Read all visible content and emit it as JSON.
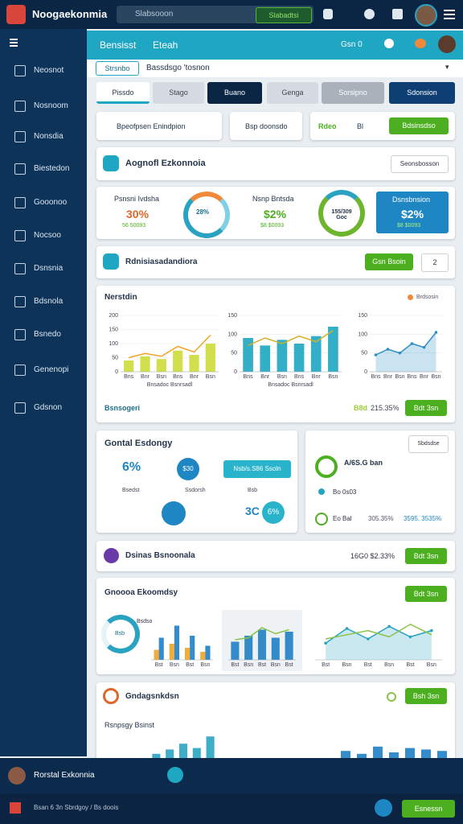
{
  "app": {
    "title": "Noogaekonmia",
    "search": "Slabsooon",
    "search_button": "Slabadtsi"
  },
  "sidebar": [
    "Neosnot",
    "Nosnoom",
    "Nonsdia",
    "Biestedon",
    "Gooonoo",
    "Nocsoo",
    "Dsnsnia",
    "Bdsnola",
    "Bsnedo",
    "Genenopi",
    "Gdsnon"
  ],
  "header": {
    "title": "Bensisst",
    "subtitle": "Eteah",
    "status": "Gsn 0"
  },
  "filter": {
    "chip": "Strsnbo",
    "value": "Bassdsgo 'tosnon"
  },
  "tabs": [
    "Pissdo",
    "Stago",
    "Buano",
    "Genga",
    "Sorsipno",
    "Sdonsion"
  ],
  "toolbar": {
    "search": "Bpeofpsen Enindpion",
    "filter": "Bsp doonsdo",
    "tag": "Rdeo",
    "count": "Bl",
    "button": "Bdsinsdso"
  },
  "overview": {
    "title": "Aognofl Ezkonnoia",
    "select": "Seonsbosson",
    "kpis": [
      {
        "label": "Psnsni Ivdsha",
        "value": "30%",
        "sub": "56 50093",
        "ring": "28%"
      },
      {
        "label": "Nsnp Bntsda",
        "value": "$2%",
        "sub": "$8 $0093",
        "ring": "155/309 Goc"
      },
      {
        "label": "Dsnsbnsion",
        "value": "$2%",
        "sub": "$8 $0093"
      }
    ]
  },
  "actions": {
    "title": "Rdnisiasadandiora",
    "button": "Gsn Bsoin",
    "page": "2"
  },
  "trends": {
    "title": "Nerstdin",
    "legend": "Brdsosin",
    "charts": [
      {
        "ylim": [
          0,
          200
        ],
        "yticks": [
          0,
          50,
          100,
          150,
          200
        ],
        "categories": [
          "Bns",
          "Bnr",
          "Bsn",
          "Bns",
          "Bnr",
          "Bsn"
        ],
        "caption": "Bnsadoc Bsnrsadl",
        "bars": {
          "color": "#cddc39",
          "values": [
            40,
            55,
            45,
            75,
            60,
            100
          ]
        },
        "line": {
          "color": "#f2a324",
          "values": [
            50,
            65,
            55,
            90,
            70,
            130
          ]
        }
      },
      {
        "ylim": [
          0,
          150
        ],
        "yticks": [
          0,
          50,
          100,
          150
        ],
        "categories": [
          "Bns",
          "Bnr",
          "Bsn",
          "Bns",
          "Bnr",
          "Bsn"
        ],
        "caption": "Bnsadoc Bsnrsadl",
        "bars": {
          "color": "#1ea6c2",
          "values": [
            90,
            70,
            85,
            75,
            95,
            120
          ]
        },
        "line": {
          "color": "#d4b02a",
          "values": [
            70,
            90,
            75,
            95,
            80,
            110
          ]
        }
      },
      {
        "ylim": [
          0,
          150
        ],
        "yticks": [
          0,
          50,
          100,
          150
        ],
        "categories": [
          "Bns",
          "Bnr",
          "Bsn",
          "Bns",
          "Bnr",
          "Bsn"
        ],
        "area": {
          "color": "#2a8fc4",
          "values": [
            45,
            60,
            50,
            75,
            65,
            105
          ]
        }
      }
    ],
    "footer_label": "Bsnsogeri",
    "footer_tag": "B8d",
    "footer_value": "215.35%",
    "footer_button": "Bdt 3sn"
  },
  "energy": {
    "title": "Gontal Esdongy",
    "stat": "6%",
    "ring1": "$30",
    "pill": "Nsb/s.S86 Ssoln",
    "labels": [
      "Bsedst",
      "Ssdorsh",
      "Bsb"
    ],
    "value2": "3C",
    "ring2": "6%"
  },
  "summary": {
    "button": "Sbdsdse",
    "title": "A/6S.G ban",
    "item": "Bo 0s03",
    "row_label": "Eo Bal",
    "row_value": "305.35%",
    "row_value2": "3595. 3535%"
  },
  "data_row": {
    "title": "Dsinas Bsnoonala",
    "value": "16G0 $2.33%",
    "button": "Bdt 3sn"
  },
  "economy": {
    "title": "Gnoooa Ekoomdsy",
    "button": "Bdt 3sn",
    "donut_label": "Bsdso",
    "donut_value": "Bsb",
    "charts": [
      {
        "ylim": [
          0,
          100
        ],
        "categories": [
          "Bst",
          "Bsn",
          "Bst",
          "Bsn"
        ],
        "bars": {
          "color": "#f2a324",
          "values": [
            25,
            40,
            30,
            20
          ]
        },
        "bars2": {
          "color": "#1f7fc4",
          "values": [
            55,
            85,
            60,
            35
          ]
        }
      },
      {
        "ylim": [
          0,
          100
        ],
        "categories": [
          "Bst",
          "Bsn",
          "Bst",
          "Bsn",
          "Bst"
        ],
        "bars": {
          "color": "#1f7fc4",
          "values": [
            45,
            60,
            75,
            55,
            70
          ]
        },
        "line": {
          "color": "#8bc34a",
          "values": [
            50,
            55,
            80,
            65,
            75
          ]
        }
      },
      {
        "ylim": [
          0,
          100
        ],
        "categories": [
          "Bst",
          "Bsn",
          "Bst",
          "Bsn",
          "Bst",
          "Bsn"
        ],
        "area": {
          "color": "#2aa3c2",
          "values": [
            40,
            75,
            50,
            80,
            55,
            70
          ]
        },
        "line": {
          "color": "#8bc34a",
          "values": [
            50,
            60,
            70,
            55,
            85,
            60
          ]
        }
      }
    ]
  },
  "graphs": {
    "title": "Gndagsnkdsn",
    "button": "Bsh 3sn",
    "subtitle": "Rsnpsgy Bsinst",
    "charts": [
      {
        "ylim": [
          0,
          100
        ],
        "bars": {
          "color": "#2aa3c2",
          "values": [
            20,
            35,
            55,
            40,
            80
          ]
        }
      },
      {
        "ylim": [
          0,
          100
        ],
        "bars": {
          "color": "#1f7fc4",
          "values": [
            30,
            20,
            45,
            25,
            40,
            35,
            30
          ]
        }
      }
    ]
  },
  "footer": {
    "user": "Rorstal Exkonnia",
    "note": "Bsan 6 3n Sbrdgoy / Bs doois",
    "button": "Esnessn"
  }
}
